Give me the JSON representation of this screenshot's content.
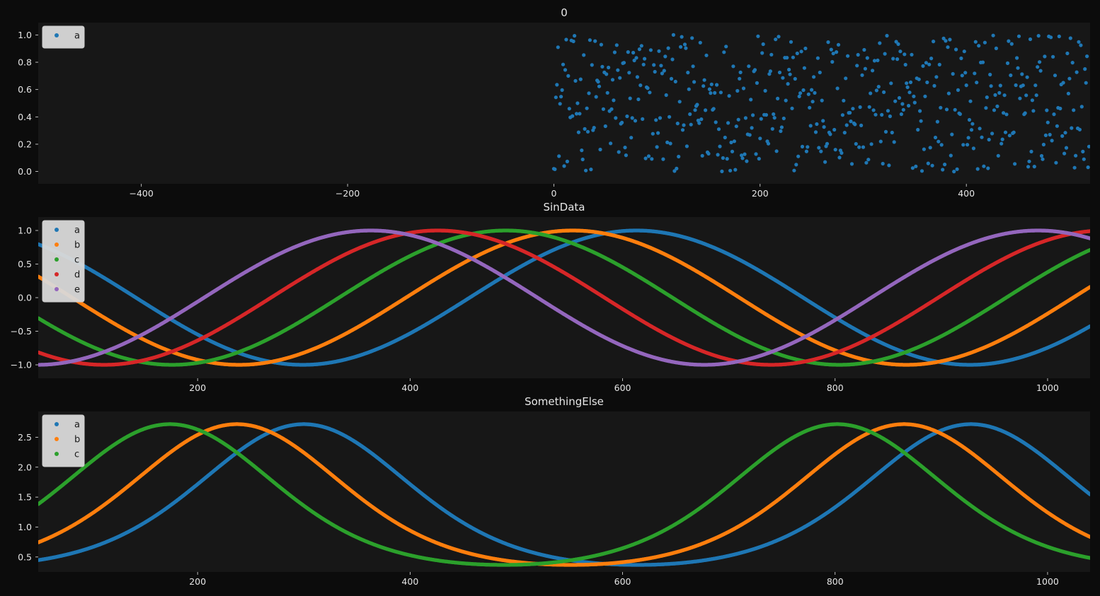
{
  "chart_data": [
    {
      "type": "scatter",
      "title": "0",
      "xlabel": "",
      "ylabel": "",
      "xlim": [
        -500,
        520
      ],
      "ylim": [
        -0.09,
        1.09
      ],
      "xticks": [
        -400,
        -200,
        0,
        200,
        400
      ],
      "yticks": [
        0.0,
        0.2,
        0.4,
        0.6,
        0.8,
        1.0
      ],
      "ytick_decimals": 1,
      "legend": "top-left",
      "series": [
        {
          "name": "a",
          "color": "#1f77b4",
          "x_range": [
            0,
            520
          ],
          "y_range": [
            0,
            1
          ],
          "n_points": 520,
          "distribution": "uniform random"
        }
      ]
    },
    {
      "type": "scatter",
      "title": "SinData",
      "xlabel": "",
      "ylabel": "",
      "xlim": [
        50,
        1040
      ],
      "ylim": [
        -1.2,
        1.2
      ],
      "xticks": [
        200,
        400,
        600,
        800,
        1000
      ],
      "yticks": [
        -1.0,
        -0.5,
        0.0,
        0.5,
        1.0
      ],
      "ytick_decimals": 1,
      "legend": "top-left",
      "function": "y = sin(2*pi*(x - phase)/period)",
      "series": [
        {
          "name": "a",
          "color": "#1f77b4",
          "period": 628,
          "phase": 456
        },
        {
          "name": "b",
          "color": "#ff7f0e",
          "period": 628,
          "phase": 396
        },
        {
          "name": "c",
          "color": "#2ca02c",
          "period": 628,
          "phase": 333
        },
        {
          "name": "d",
          "color": "#d62728",
          "period": 628,
          "phase": 269
        },
        {
          "name": "e",
          "color": "#9467bd",
          "period": 628,
          "phase": 206
        }
      ]
    },
    {
      "type": "scatter",
      "title": "SomethingElse",
      "xlabel": "",
      "ylabel": "",
      "xlim": [
        50,
        1040
      ],
      "ylim": [
        0.25,
        2.93
      ],
      "xticks": [
        200,
        400,
        600,
        800,
        1000
      ],
      "yticks": [
        0.5,
        1.0,
        1.5,
        2.0,
        2.5
      ],
      "ytick_decimals": 1,
      "legend": "top-left",
      "function": "y = exp(sin(2*pi*(x - phase)/period))",
      "series": [
        {
          "name": "a",
          "color": "#1f77b4",
          "period": 628,
          "phase": 143
        },
        {
          "name": "b",
          "color": "#ff7f0e",
          "period": 628,
          "phase": 80
        },
        {
          "name": "c",
          "color": "#2ca02c",
          "period": 628,
          "phase": 17
        }
      ]
    }
  ]
}
